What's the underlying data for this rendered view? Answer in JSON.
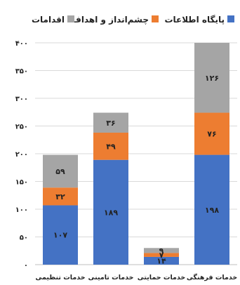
{
  "chart_data": {
    "type": "bar",
    "stacked": true,
    "title": "",
    "xlabel": "",
    "ylabel": "",
    "categories": [
      "خدمات فرهنگی",
      "خدمات حمایتی",
      "خدمات تامینی",
      "خدمات تنظیمی"
    ],
    "series": [
      {
        "name": "پایگاه اطلاعات",
        "color": "#4472C4",
        "values": [
          198,
          14,
          189,
          107
        ],
        "labels": [
          "۱۹۸",
          "۱۴",
          "۱۸۹",
          "۱۰۷"
        ]
      },
      {
        "name": "چشم‌انداز و اهداف",
        "color": "#ED7D31",
        "values": [
          76,
          7,
          49,
          32
        ],
        "labels": [
          "۷۶",
          "۷",
          "۴۹",
          "۳۲"
        ]
      },
      {
        "name": "اقدامات",
        "color": "#A5A5A5",
        "values": [
          126,
          9,
          36,
          59
        ],
        "labels": [
          "۱۲۶",
          "۹",
          "۳۶",
          "۵۹"
        ]
      }
    ],
    "ylim": [
      0,
      400
    ],
    "yticks": [
      0,
      50,
      100,
      150,
      200,
      250,
      300,
      350,
      400
    ],
    "ytick_labels": [
      "۰",
      "۵۰",
      "۱۰۰",
      "۱۵۰",
      "۲۰۰",
      "۲۵۰",
      "۳۰۰",
      "۳۵۰",
      "۴۰۰"
    ],
    "grid": true,
    "legend_position": "top"
  }
}
